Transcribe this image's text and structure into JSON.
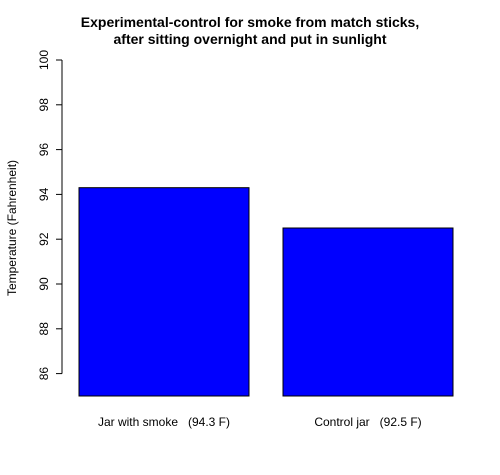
{
  "chart_data": {
    "type": "bar",
    "title_lines": [
      "Experimental-control for smoke from match sticks,",
      "after sitting overnight and put in sunlight"
    ],
    "ylabel": "Temperature (Fahrenheit)",
    "xlabel": "",
    "categories": [
      "Jar with smoke   (94.3 F)",
      "Control jar   (92.5 F)"
    ],
    "values": [
      94.3,
      92.5
    ],
    "ylim": [
      85,
      100
    ],
    "yticks": [
      86,
      88,
      90,
      92,
      94,
      96,
      98,
      100
    ],
    "bar_color": "#0000FF",
    "grid": false,
    "legend": "none"
  }
}
